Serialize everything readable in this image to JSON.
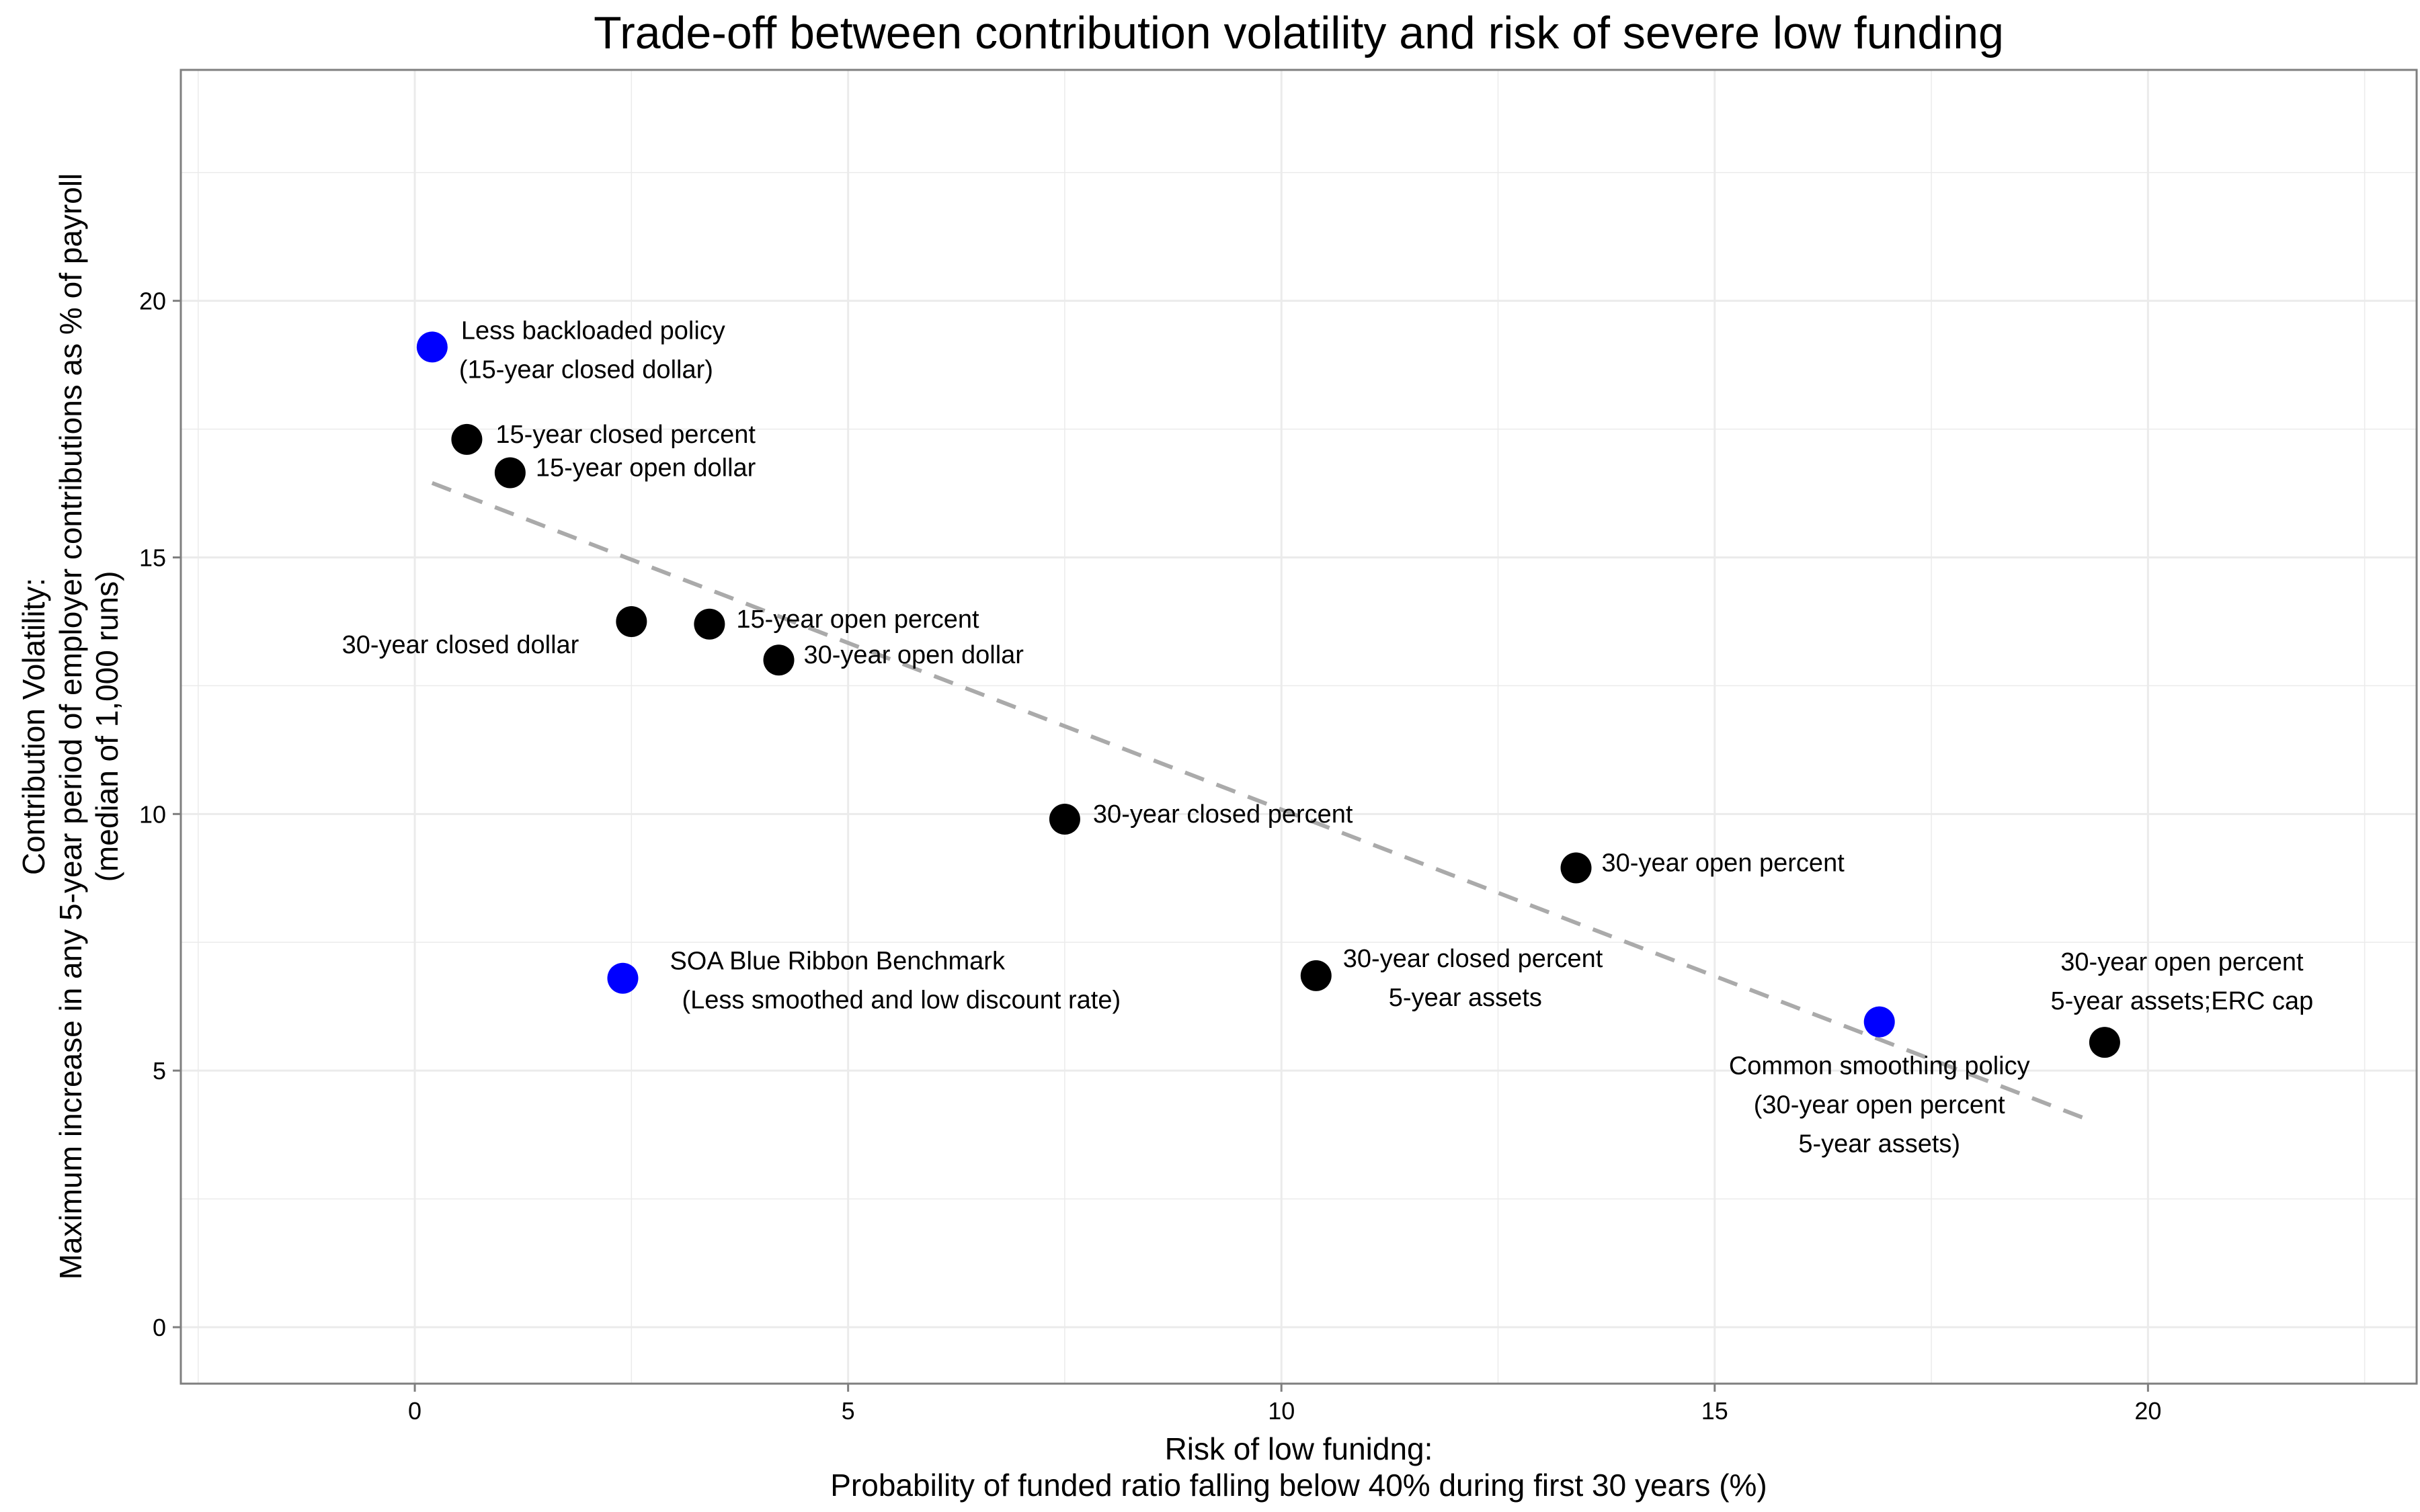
{
  "chart_data": {
    "type": "scatter",
    "title": "Trade-off between contribution volatility and risk of severe low funding",
    "xlabel": [
      "Risk of low funidng:",
      "Probability of funded ratio falling below 40% during first 30 years (%)"
    ],
    "ylabel": [
      "Contribution Volatility:",
      "Maximum increase in any 5-year period of employer contributions as % of payroll",
      "(median of 1,000 runs)"
    ],
    "xlim": [
      -2.7,
      23.1
    ],
    "ylim": [
      -1.1,
      24.5
    ],
    "x_ticks": [
      0,
      5,
      10,
      15,
      20
    ],
    "y_ticks": [
      0,
      5,
      10,
      15,
      20
    ],
    "grid": true,
    "colors": {
      "benchmark": "#0000ff",
      "policy": "#000000",
      "trend": "#aaaaaa",
      "panel_border": "#7f7f7f",
      "grid": "#ebebeb"
    },
    "points": [
      {
        "x": 0.2,
        "y": 19.1,
        "color": "#0000ff",
        "label": [
          "Less backloaded policy",
          "(15-year closed dollar)"
        ]
      },
      {
        "x": 0.6,
        "y": 17.3,
        "color": "#000000",
        "label": [
          "15-year closed percent"
        ]
      },
      {
        "x": 1.1,
        "y": 16.65,
        "color": "#000000",
        "label": [
          "15-year open dollar"
        ]
      },
      {
        "x": 2.5,
        "y": 13.75,
        "color": "#000000",
        "label": [
          "30-year closed dollar"
        ]
      },
      {
        "x": 3.4,
        "y": 13.7,
        "color": "#000000",
        "label": [
          "15-year open percent"
        ]
      },
      {
        "x": 4.2,
        "y": 13.0,
        "color": "#000000",
        "label": [
          "30-year open dollar"
        ]
      },
      {
        "x": 7.5,
        "y": 9.9,
        "color": "#000000",
        "label": [
          "30-year closed percent"
        ]
      },
      {
        "x": 13.4,
        "y": 8.95,
        "color": "#000000",
        "label": [
          "30-year open percent"
        ]
      },
      {
        "x": 2.4,
        "y": 6.8,
        "color": "#0000ff",
        "label": [
          "SOA Blue Ribbon Benchmark",
          "(Less smoothed and low discount rate)"
        ]
      },
      {
        "x": 10.4,
        "y": 6.85,
        "color": "#000000",
        "label": [
          "30-year closed percent",
          "5-year assets"
        ]
      },
      {
        "x": 16.9,
        "y": 5.95,
        "color": "#0000ff",
        "label": [
          "Common smoothing policy",
          "(30-year open percent",
          "5-year assets)"
        ]
      },
      {
        "x": 19.5,
        "y": 5.55,
        "color": "#000000",
        "label": [
          "30-year open percent",
          "5-year assets;ERC cap"
        ]
      }
    ],
    "trend_line": {
      "style": "dashed",
      "x": [
        0.2,
        19.3
      ],
      "y": [
        16.45,
        4.05
      ]
    }
  }
}
